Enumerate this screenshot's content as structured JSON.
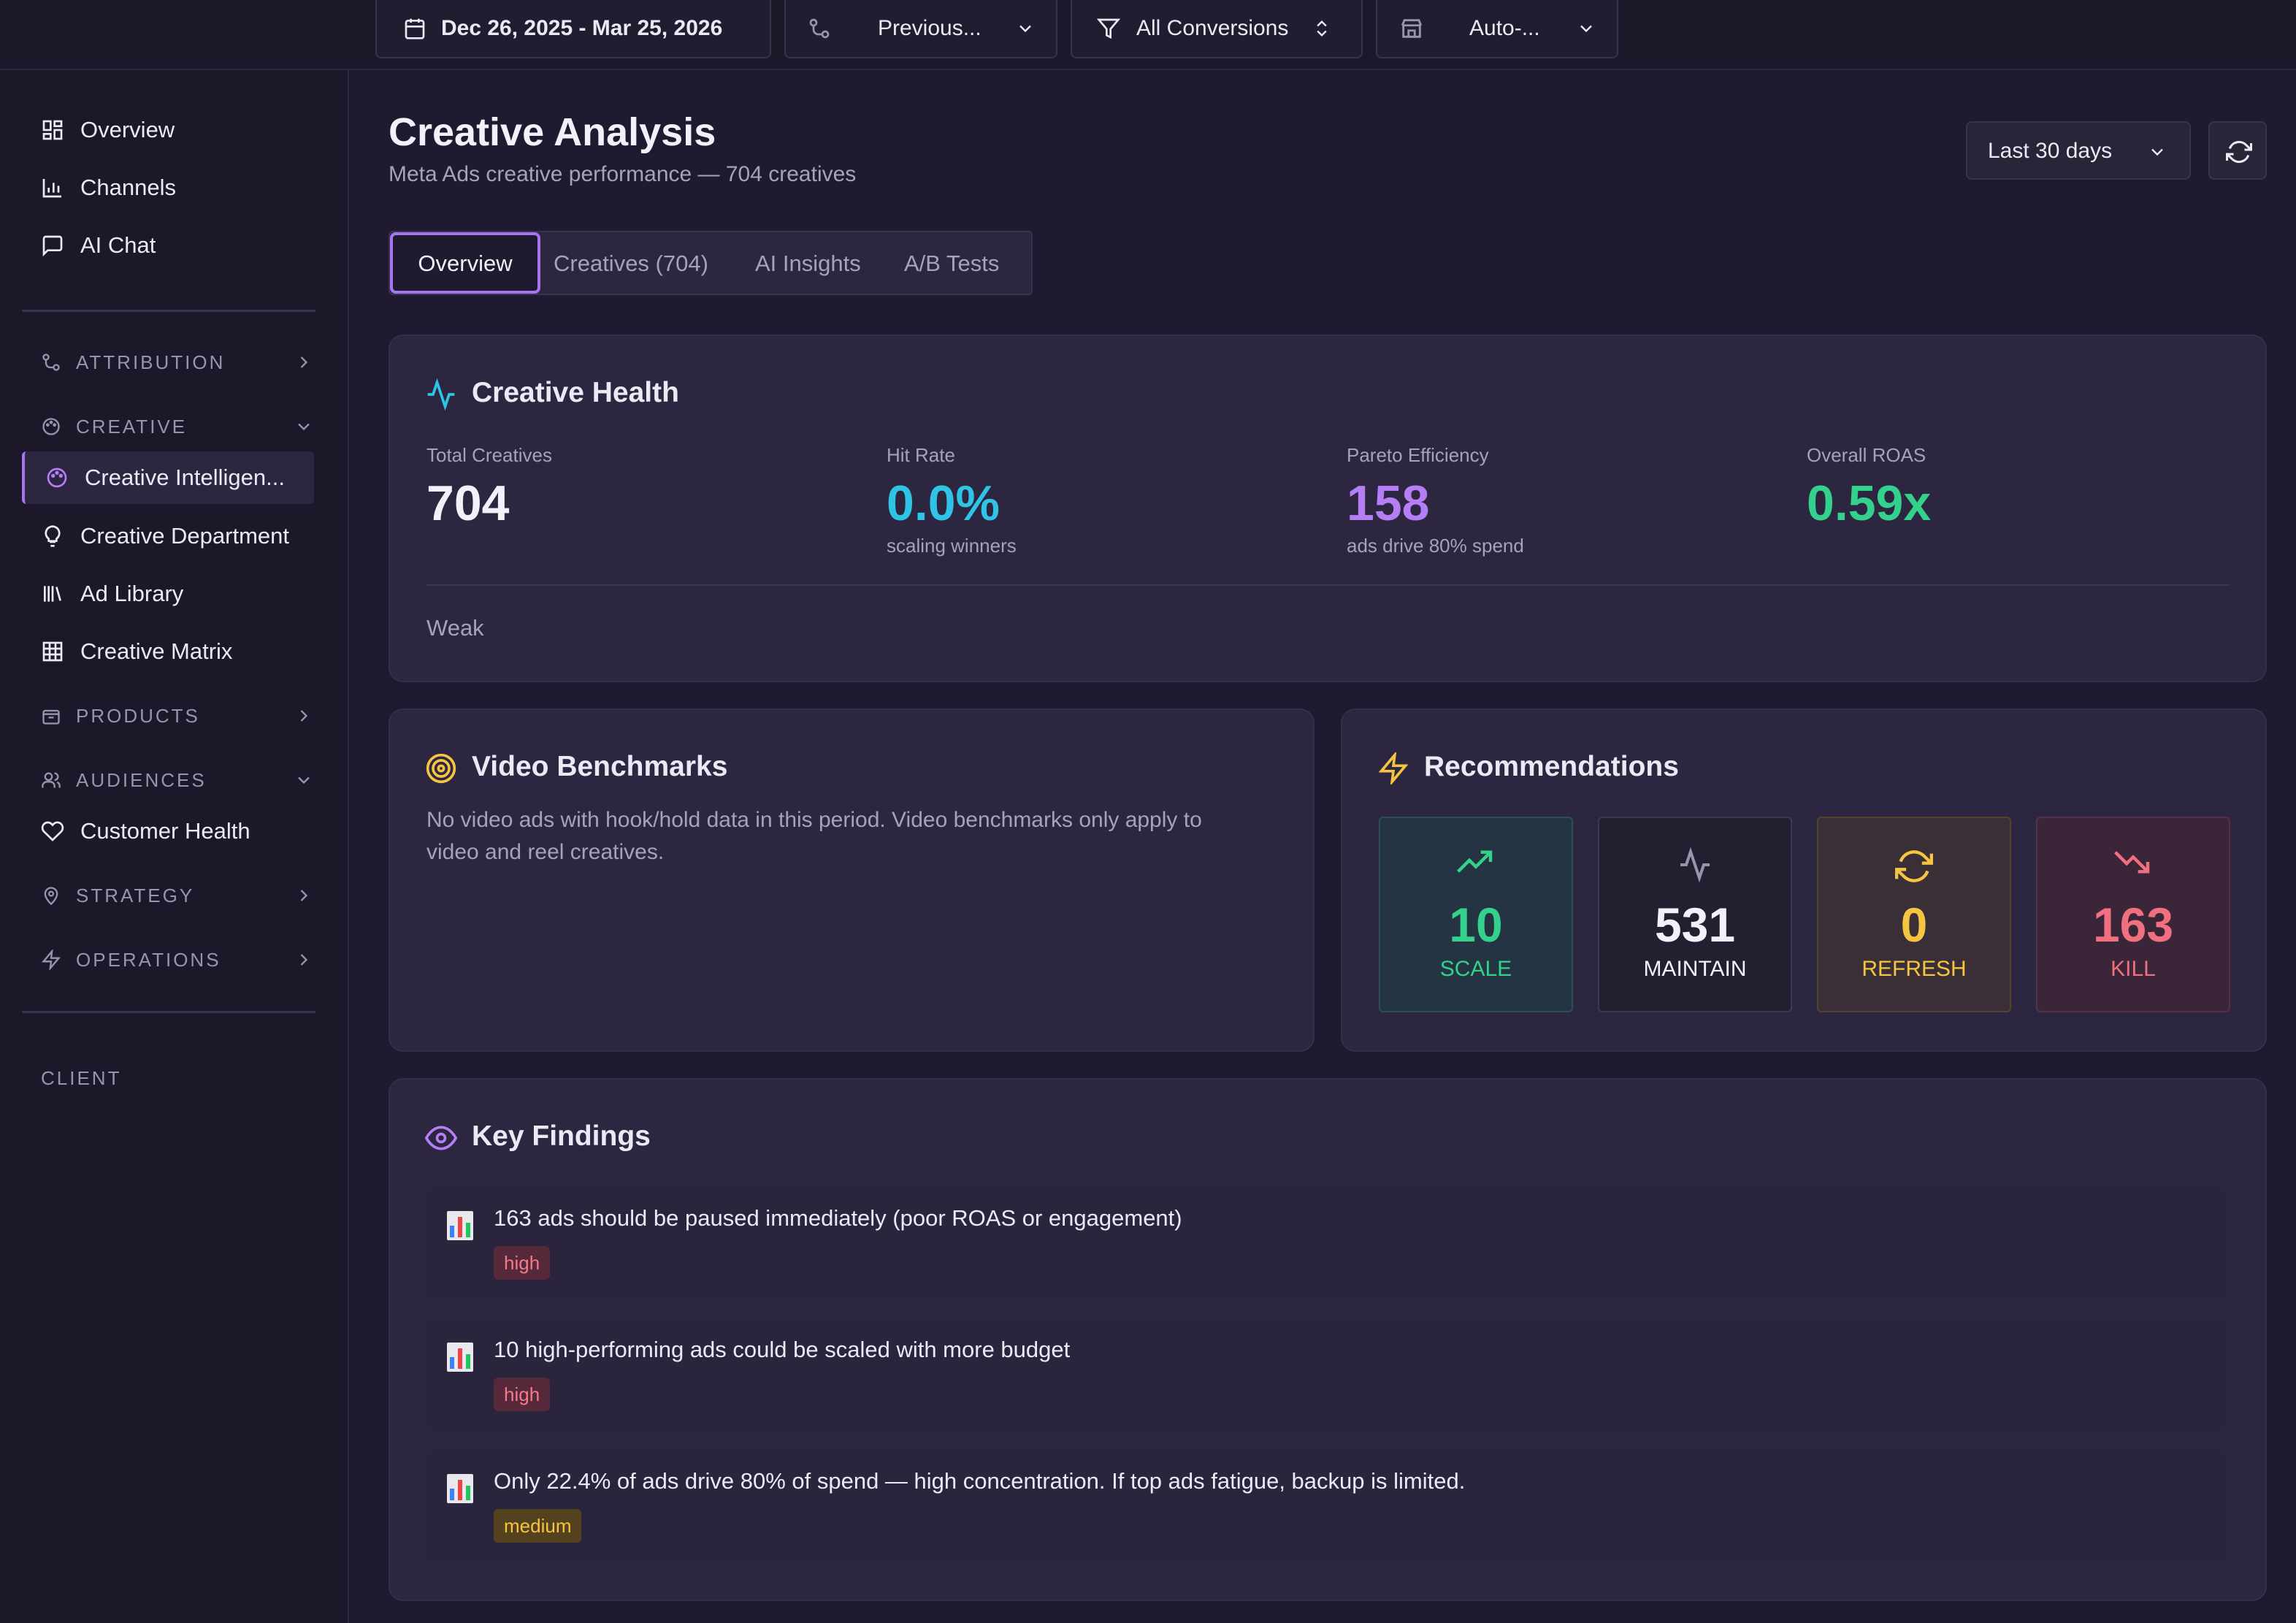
{
  "topbar": {
    "date_range": "Dec 26, 2025 - Mar 25, 2026",
    "compare": "Previous...",
    "conversions": "All Conversions",
    "store": "Auto-..."
  },
  "sidebar": {
    "top_items": [
      {
        "label": "Overview",
        "icon": "layout-grid-icon"
      },
      {
        "label": "Channels",
        "icon": "bar-chart-icon"
      },
      {
        "label": "AI Chat",
        "icon": "message-square-icon"
      }
    ],
    "sections": {
      "attribution": "ATTRIBUTION",
      "creative": "CREATIVE",
      "products": "PRODUCTS",
      "audiences": "AUDIENCES",
      "strategy": "STRATEGY",
      "operations": "OPERATIONS",
      "client": "CLIENT"
    },
    "creative_items": [
      {
        "label": "Creative Intelligen...",
        "icon": "palette-icon"
      },
      {
        "label": "Creative Department",
        "icon": "lightbulb-icon"
      },
      {
        "label": "Ad Library",
        "icon": "library-icon"
      },
      {
        "label": "Creative Matrix",
        "icon": "grid-icon"
      }
    ],
    "audience_items": [
      {
        "label": "Customer Health",
        "icon": "heart-icon"
      }
    ]
  },
  "header": {
    "title": "Creative Analysis",
    "subtitle": "Meta Ads creative performance — 704 creatives",
    "period": "Last 30 days"
  },
  "tabs": [
    "Overview",
    "Creatives (704)",
    "AI Insights",
    "A/B Tests"
  ],
  "health": {
    "title": "Creative Health",
    "metrics": [
      {
        "label": "Total Creatives",
        "value": "704",
        "sub": ""
      },
      {
        "label": "Hit Rate",
        "value": "0.0%",
        "sub": "scaling winners"
      },
      {
        "label": "Pareto Efficiency",
        "value": "158",
        "sub": "ads drive 80% spend"
      },
      {
        "label": "Overall ROAS",
        "value": "0.59x",
        "sub": ""
      }
    ],
    "status": "Weak"
  },
  "video": {
    "title": "Video Benchmarks",
    "line1": "No video ads with hook/hold data in this period. Video benchmarks only apply to",
    "line2": "video and reel creatives."
  },
  "recommendations": {
    "title": "Recommendations",
    "items": [
      {
        "value": "10",
        "label": "SCALE",
        "icon": "trending-up-icon"
      },
      {
        "value": "531",
        "label": "MAINTAIN",
        "icon": "activity-icon"
      },
      {
        "value": "0",
        "label": "REFRESH",
        "icon": "refresh-icon"
      },
      {
        "value": "163",
        "label": "KILL",
        "icon": "trending-down-icon"
      }
    ]
  },
  "findings": {
    "title": "Key Findings",
    "items": [
      {
        "text": "163 ads should be paused immediately (poor ROAS or engagement)",
        "priority": "high"
      },
      {
        "text": "10 high-performing ads could be scaled with more budget",
        "priority": "high"
      },
      {
        "text": "Only 22.4% of ads drive 80% of spend — high concentration. If top ads fatigue, backup is limited.",
        "priority": "medium"
      }
    ]
  },
  "colors": {
    "accent": "#a875f0",
    "cyan": "#2fc3e6",
    "purple": "#b67ef5",
    "green": "#33d18b",
    "yellow": "#f5c542",
    "red": "#f0707f"
  }
}
